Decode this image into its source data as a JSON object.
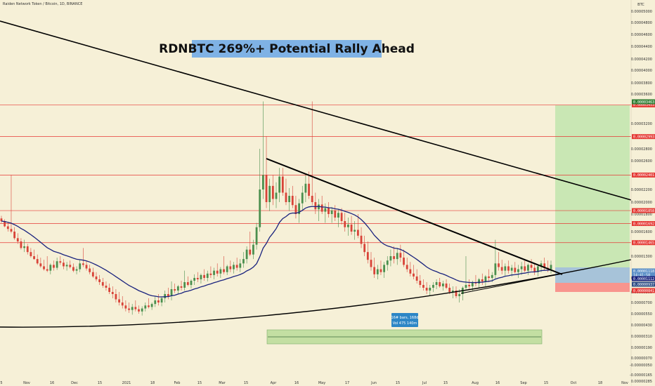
{
  "header": {
    "symbol": "Raiden Network Token / Bitcoin, 1D, BINANCE",
    "currency": "BTC"
  },
  "title": "RDNBTC 269%+ Potential Rally Ahead",
  "colors": {
    "background": "#f6f0d7",
    "resistance": "#e53935",
    "trendline": "#000000",
    "ema": "#1a237e",
    "up_candle": "#4a8f4e",
    "down_candle": "#d84338",
    "target_zone": "#c9e7b4",
    "stop_zone": "#f8958e",
    "entry_zone": "#a7c3d9",
    "info_box": "#2d86c6",
    "range_box": "#c3dfa2"
  },
  "chart_data": {
    "type": "candlestick",
    "title": "RDNBTC 269%+ Potential Rally Ahead",
    "x_ticks": [
      "5",
      "Nov",
      "16",
      "Dec",
      "15",
      "2021",
      "18",
      "Feb",
      "15",
      "Mar",
      "15",
      "Apr",
      "16",
      "May",
      "17",
      "Jun",
      "15",
      "Jul",
      "15",
      "Aug",
      "16",
      "Sep",
      "15",
      "Oct",
      "18",
      "Nov"
    ],
    "y_ticks": [
      {
        "label": "0.00005000",
        "value": 5e-05
      },
      {
        "label": "0.00004800",
        "value": 4.8e-05
      },
      {
        "label": "0.00004600",
        "value": 4.6e-05
      },
      {
        "label": "0.00004400",
        "value": 4.4e-05
      },
      {
        "label": "0.00004200",
        "value": 4.2e-05
      },
      {
        "label": "0.00004000",
        "value": 4e-05
      },
      {
        "label": "0.00003800",
        "value": 3.8e-05
      },
      {
        "label": "0.00003600",
        "value": 3.6e-05
      },
      {
        "label": "0.00003200",
        "value": 3.2e-05
      },
      {
        "label": "0.00002800",
        "value": 2.8e-05
      },
      {
        "label": "0.00002600",
        "value": 2.6e-05
      },
      {
        "label": "0.00002200",
        "value": 2.2e-05
      },
      {
        "label": "0.00002000",
        "value": 2e-05
      },
      {
        "label": "0.00001800",
        "value": 1.8e-05
      },
      {
        "label": "0.00001600",
        "value": 1.6e-05
      },
      {
        "label": "0.00001300",
        "value": 1.3e-05
      },
      {
        "label": "0.00001000",
        "value": 1e-05
      },
      {
        "label": "0.00000800",
        "value": 8e-06
      },
      {
        "label": "0.00000700",
        "value": 7e-06
      },
      {
        "label": "0.00000550",
        "value": 5.5e-06
      },
      {
        "label": "0.00000430",
        "value": 4.3e-06
      },
      {
        "label": "0.00000310",
        "value": 3.1e-06
      },
      {
        "label": "0.00000190",
        "value": 1.9e-06
      },
      {
        "label": "0.00000070",
        "value": 7e-07
      },
      {
        "label": "-0.00000050",
        "value": -5e-07
      },
      {
        "label": "-0.00000165",
        "value": -1.65e-06
      },
      {
        "label": "-0.00000285",
        "value": -2.85e-06
      }
    ],
    "resistance_levels": [
      {
        "label": "0.00003453",
        "value": 3.453e-05
      },
      {
        "label": "0.00002993",
        "value": 2.993e-05
      },
      {
        "label": "0.00002401",
        "value": 2.401e-05
      },
      {
        "label": "0.00001858",
        "value": 1.858e-05
      },
      {
        "label": "0.00001692",
        "value": 1.692e-05
      },
      {
        "label": "0.00001465",
        "value": 1.465e-05
      }
    ],
    "price_tags": [
      {
        "label": "0.00003463",
        "kind": "target",
        "value": 3.463e-05
      },
      {
        "label": "0.00001118",
        "kind": "current",
        "value": 1.118e-05,
        "sub": "14:41:58"
      },
      {
        "label": "0.00001112",
        "kind": "ema",
        "value": 1.112e-05
      },
      {
        "label": "0.00000937",
        "kind": "entry",
        "value": 9.37e-06
      },
      {
        "label": "0.00000841",
        "kind": "stop",
        "value": 8.41e-06
      }
    ],
    "candles": [
      [
        1.75e-05,
        1.78e-05,
        1.7e-05,
        1.72e-05
      ],
      [
        1.72e-05,
        1.74e-05,
        1.65e-05,
        1.66e-05
      ],
      [
        1.66e-05,
        1.7e-05,
        1.6e-05,
        1.63e-05
      ],
      [
        1.63e-05,
        2.4e-05,
        1.58e-05,
        1.6e-05
      ],
      [
        1.6e-05,
        1.65e-05,
        1.5e-05,
        1.52e-05
      ],
      [
        1.52e-05,
        1.58e-05,
        1.45e-05,
        1.48e-05
      ],
      [
        1.48e-05,
        1.52e-05,
        1.38e-05,
        1.4e-05
      ],
      [
        1.4e-05,
        1.5e-05,
        1.35e-05,
        1.42e-05
      ],
      [
        1.42e-05,
        1.45e-05,
        1.32e-05,
        1.35e-05
      ],
      [
        1.35e-05,
        1.4e-05,
        1.28e-05,
        1.3e-05
      ],
      [
        1.3e-05,
        1.38e-05,
        1.25e-05,
        1.26e-05
      ],
      [
        1.26e-05,
        1.32e-05,
        1.18e-05,
        1.2e-05
      ],
      [
        1.2e-05,
        1.28e-05,
        1.14e-05,
        1.16e-05
      ],
      [
        1.16e-05,
        1.25e-05,
        1.1e-05,
        1.12e-05
      ],
      [
        1.12e-05,
        1.3e-05,
        1.08e-05,
        1.1e-05
      ],
      [
        1.1e-05,
        1.2e-05,
        1.05e-05,
        1.18e-05
      ],
      [
        1.18e-05,
        1.24e-05,
        1.1e-05,
        1.14e-05
      ],
      [
        1.14e-05,
        1.28e-05,
        1.11e-05,
        1.23e-05
      ],
      [
        1.23e-05,
        1.3e-05,
        1.18e-05,
        1.21e-05
      ],
      [
        1.21e-05,
        1.26e-05,
        1.12e-05,
        1.16e-05
      ],
      [
        1.16e-05,
        1.22e-05,
        1.1e-05,
        1.18e-05
      ],
      [
        1.18e-05,
        1.24e-05,
        1.13e-05,
        1.15e-05
      ],
      [
        1.15e-05,
        1.2e-05,
        1.08e-05,
        1.1e-05
      ],
      [
        1.1e-05,
        1.16e-05,
        1.05e-05,
        1.12e-05
      ],
      [
        1.12e-05,
        1.25e-05,
        1.08e-05,
        1.2e-05
      ],
      [
        1.2e-05,
        1.4e-05,
        1.15e-05,
        1.18e-05
      ],
      [
        1.18e-05,
        1.24e-05,
        1.1e-05,
        1.13e-05
      ],
      [
        1.13e-05,
        1.18e-05,
        1.05e-05,
        1.08e-05
      ],
      [
        1.08e-05,
        1.14e-05,
        1e-05,
        1.02e-05
      ],
      [
        1.02e-05,
        1.08e-05,
        9.5e-06,
        9.8e-06
      ],
      [
        9.8e-06,
        1.04e-05,
        9e-06,
        9.4e-06
      ],
      [
        9.4e-06,
        1e-05,
        8.6e-06,
        8.9e-06
      ],
      [
        8.9e-06,
        9.5e-06,
        8.2e-06,
        8.6e-06
      ],
      [
        8.6e-06,
        9.2e-06,
        7.8e-06,
        8e-06
      ],
      [
        8e-06,
        8.8e-06,
        7.4e-06,
        7.8e-06
      ],
      [
        7.8e-06,
        8.4e-06,
        7e-06,
        7.3e-06
      ],
      [
        7.3e-06,
        8e-06,
        6.6e-06,
        7e-06
      ],
      [
        7e-06,
        7.6e-06,
        6.2e-06,
        6.6e-06
      ],
      [
        6.6e-06,
        7.2e-06,
        5.8e-06,
        6.2e-06
      ],
      [
        6.2e-06,
        7e-06,
        5.6e-06,
        6e-06
      ],
      [
        6e-06,
        6.8e-06,
        5.4e-06,
        6.4e-06
      ],
      [
        6.4e-06,
        7.2e-06,
        5.8e-06,
        6.1e-06
      ],
      [
        6.1e-06,
        6.6e-06,
        5.5e-06,
        5.8e-06
      ],
      [
        5.8e-06,
        6.5e-06,
        5.3e-06,
        6.2e-06
      ],
      [
        6.2e-06,
        7e-06,
        5.8e-06,
        6.6e-06
      ],
      [
        6.6e-06,
        7.4e-06,
        6.2e-06,
        6.4e-06
      ],
      [
        6.4e-06,
        7e-06,
        6e-06,
        6.8e-06
      ],
      [
        6.8e-06,
        7.6e-06,
        6.4e-06,
        7.2e-06
      ],
      [
        7.2e-06,
        7.8e-06,
        6.6e-06,
        7e-06
      ],
      [
        7e-06,
        7.6e-06,
        6.5e-06,
        7.4e-06
      ],
      [
        7.4e-06,
        8.2e-06,
        7e-06,
        7.8e-06
      ],
      [
        7.8e-06,
        8.6e-06,
        7.3e-06,
        7.6e-06
      ],
      [
        7.6e-06,
        9.5e-06,
        7.2e-06,
        8.4e-06
      ],
      [
        8.4e-06,
        9.2e-06,
        7.9e-06,
        8.2e-06
      ],
      [
        8.2e-06,
        9e-06,
        7.8e-06,
        8.8e-06
      ],
      [
        8.8e-06,
        9.6e-06,
        8.2e-06,
        8.6e-06
      ],
      [
        8.6e-06,
        1.1e-05,
        8.2e-06,
        9.4e-06
      ],
      [
        9.4e-06,
        1.02e-05,
        8.8e-06,
        9e-06
      ],
      [
        9e-06,
        9.8e-06,
        8.5e-06,
        9.6e-06
      ],
      [
        9.6e-06,
        1.05e-05,
        9e-06,
        1e-05
      ],
      [
        1e-05,
        1.08e-05,
        9.4e-06,
        9.8e-06
      ],
      [
        9.8e-06,
        1.06e-05,
        9.2e-06,
        1.04e-05
      ],
      [
        1.04e-05,
        1.12e-05,
        9.6e-06,
        1e-05
      ],
      [
        1e-05,
        1.1e-05,
        9.5e-06,
        1.06e-05
      ],
      [
        1.06e-05,
        1.16e-05,
        1e-05,
        1.04e-05
      ],
      [
        1.04e-05,
        1.14e-05,
        9.8e-06,
        1.1e-05
      ],
      [
        1.1e-05,
        1.2e-05,
        1.02e-05,
        1.06e-05
      ],
      [
        1.06e-05,
        1.15e-05,
        1e-05,
        1.12e-05
      ],
      [
        1.12e-05,
        1.3e-05,
        1.05e-05,
        1.08e-05
      ],
      [
        1.08e-05,
        1.18e-05,
        1.04e-05,
        1.16e-05
      ],
      [
        1.16e-05,
        1.24e-05,
        1.08e-05,
        1.12e-05
      ],
      [
        1.12e-05,
        1.22e-05,
        1.06e-05,
        1.18e-05
      ],
      [
        1.18e-05,
        1.28e-05,
        1.1e-05,
        1.14e-05
      ],
      [
        1.14e-05,
        1.26e-05,
        1.08e-05,
        1.2e-05
      ],
      [
        1.2e-05,
        1.35e-05,
        1.14e-05,
        1.26e-05
      ],
      [
        1.26e-05,
        1.42e-05,
        1.2e-05,
        1.38e-05
      ],
      [
        1.38e-05,
        1.6e-05,
        1.3e-05,
        1.32e-05
      ],
      [
        1.32e-05,
        1.5e-05,
        1.26e-05,
        1.44e-05
      ],
      [
        1.44e-05,
        1.7e-05,
        1.38e-05,
        1.65e-05
      ],
      [
        1.65e-05,
        2.8e-05,
        1.6e-05,
        2.2e-05
      ],
      [
        2.2e-05,
        3.5e-05,
        2.05e-05,
        2.4e-05
      ],
      [
        2.4e-05,
        3e-05,
        1.9e-05,
        2e-05
      ],
      [
        2e-05,
        2.35e-05,
        1.85e-05,
        2.25e-05
      ],
      [
        2.25e-05,
        2.4e-05,
        1.95e-05,
        2.05e-05
      ],
      [
        2.05e-05,
        2.3e-05,
        1.9e-05,
        2.15e-05
      ],
      [
        2.15e-05,
        2.5e-05,
        2e-05,
        2.38e-05
      ],
      [
        2.38e-05,
        2.5e-05,
        2.1e-05,
        2.15e-05
      ],
      [
        2.15e-05,
        2.35e-05,
        1.95e-05,
        2e-05
      ],
      [
        2e-05,
        2.22e-05,
        1.85e-05,
        2.1e-05
      ],
      [
        2.1e-05,
        2.25e-05,
        1.9e-05,
        1.95e-05
      ],
      [
        1.95e-05,
        2.1e-05,
        1.75e-05,
        1.8e-05
      ],
      [
        1.8e-05,
        2.05e-05,
        1.7e-05,
        1.98e-05
      ],
      [
        1.98e-05,
        2.25e-05,
        1.85e-05,
        2.15e-05
      ],
      [
        2.15e-05,
        2.4e-05,
        2e-05,
        2.28e-05
      ],
      [
        2.28e-05,
        2.45e-05,
        2.05e-05,
        2.1e-05
      ],
      [
        2.1e-05,
        3.5e-05,
        1.95e-05,
        2e-05
      ],
      [
        2e-05,
        2.15e-05,
        1.8e-05,
        1.88e-05
      ],
      [
        1.88e-05,
        2.05e-05,
        1.72e-05,
        1.96e-05
      ],
      [
        1.96e-05,
        2.1e-05,
        1.8e-05,
        1.84e-05
      ],
      [
        1.84e-05,
        1.98e-05,
        1.7e-05,
        1.9e-05
      ],
      [
        1.9e-05,
        2e-05,
        1.76e-05,
        1.8e-05
      ],
      [
        1.8e-05,
        1.92e-05,
        1.7e-05,
        1.86e-05
      ],
      [
        1.86e-05,
        1.95e-05,
        1.72e-05,
        1.76e-05
      ],
      [
        1.76e-05,
        1.88e-05,
        1.65e-05,
        1.82e-05
      ],
      [
        1.82e-05,
        1.9e-05,
        1.68e-05,
        1.72e-05
      ],
      [
        1.72e-05,
        1.82e-05,
        1.6e-05,
        1.65e-05
      ],
      [
        1.65e-05,
        1.76e-05,
        1.55e-05,
        1.68e-05
      ],
      [
        1.68e-05,
        1.78e-05,
        1.56e-05,
        1.6e-05
      ],
      [
        1.6e-05,
        1.72e-05,
        1.5e-05,
        1.62e-05
      ],
      [
        1.62e-05,
        1.8e-05,
        1.52e-05,
        1.55e-05
      ],
      [
        1.55e-05,
        1.65e-05,
        1.4e-05,
        1.45e-05
      ],
      [
        1.45e-05,
        1.55e-05,
        1.3e-05,
        1.35e-05
      ],
      [
        1.35e-05,
        1.48e-05,
        1.2e-05,
        1.25e-05
      ],
      [
        1.25e-05,
        1.35e-05,
        1.1e-05,
        1.15e-05
      ],
      [
        1.15e-05,
        1.28e-05,
        1e-05,
        1.05e-05
      ],
      [
        1.05e-05,
        1.18e-05,
        9.8e-06,
        1.12e-05
      ],
      [
        1.12e-05,
        1.24e-05,
        1.04e-05,
        1.08e-05
      ],
      [
        1.08e-05,
        1.22e-05,
        1e-05,
        1.18e-05
      ],
      [
        1.18e-05,
        1.3e-05,
        1.1e-05,
        1.24e-05
      ],
      [
        1.24e-05,
        1.38e-05,
        1.16e-05,
        1.3e-05
      ],
      [
        1.3e-05,
        1.42e-05,
        1.2e-05,
        1.26e-05
      ],
      [
        1.26e-05,
        1.4e-05,
        1.18e-05,
        1.34e-05
      ],
      [
        1.34e-05,
        1.44e-05,
        1.22e-05,
        1.28e-05
      ],
      [
        1.28e-05,
        1.38e-05,
        1.15e-05,
        1.18e-05
      ],
      [
        1.18e-05,
        1.28e-05,
        1.08e-05,
        1.12e-05
      ],
      [
        1.12e-05,
        1.22e-05,
        1.02e-05,
        1.06e-05
      ],
      [
        1.06e-05,
        1.18e-05,
        9.8e-06,
        1.02e-05
      ],
      [
        1.02e-05,
        1.12e-05,
        9.2e-06,
        9.6e-06
      ],
      [
        9.6e-06,
        1.04e-05,
        8.6e-06,
        9e-06
      ],
      [
        9e-06,
        9.8e-06,
        8.2e-06,
        8.6e-06
      ],
      [
        8.6e-06,
        9.4e-06,
        7.8e-06,
        8.2e-06
      ],
      [
        8.2e-06,
        9e-06,
        7.6e-06,
        8.6e-06
      ],
      [
        8.6e-06,
        9.4e-06,
        8e-06,
        9e-06
      ],
      [
        9e-06,
        9.8e-06,
        8.4e-06,
        9.4e-06
      ],
      [
        9.4e-06,
        1e-05,
        8.6e-06,
        8.8e-06
      ],
      [
        8.8e-06,
        9.6e-06,
        8.2e-06,
        9.2e-06
      ],
      [
        9.2e-06,
        9.8e-06,
        8.4e-06,
        8.6e-06
      ],
      [
        8.6e-06,
        9.2e-06,
        7.8e-06,
        8e-06
      ],
      [
        8e-06,
        8.8e-06,
        7.4e-06,
        8.2e-06
      ],
      [
        8.2e-06,
        8.8e-06,
        7.4e-06,
        7.6e-06
      ],
      [
        7.6e-06,
        8.4e-06,
        7e-06,
        7.8e-06
      ],
      [
        7.8e-06,
        8.8e-06,
        7.2e-06,
        8.6e-06
      ],
      [
        8.6e-06,
        1.3e-05,
        8.2e-06,
        9e-06
      ],
      [
        9e-06,
        9.8e-06,
        8.4e-06,
        8.8e-06
      ],
      [
        8.8e-06,
        9.6e-06,
        8.2e-06,
        9.4e-06
      ],
      [
        9.4e-06,
        1.04e-05,
        8.8e-06,
        9.2e-06
      ],
      [
        9.2e-06,
        1e-05,
        8.6e-06,
        9.8e-06
      ],
      [
        9.8e-06,
        1.06e-05,
        9e-06,
        9.5e-06
      ],
      [
        9.5e-06,
        1.04e-05,
        8.8e-06,
        1.02e-05
      ],
      [
        1.02e-05,
        1.12e-05,
        9.4e-06,
        1e-05
      ],
      [
        1e-05,
        1.08e-05,
        9.4e-06,
        1.04e-05
      ],
      [
        1.04e-05,
        1.5e-05,
        9.8e-06,
        1.2e-05
      ],
      [
        1.2e-05,
        1.35e-05,
        1.1e-05,
        1.15e-05
      ],
      [
        1.15e-05,
        1.25e-05,
        1.05e-05,
        1.1e-05
      ],
      [
        1.1e-05,
        1.2e-05,
        1.02e-05,
        1.16e-05
      ],
      [
        1.16e-05,
        1.24e-05,
        1.06e-05,
        1.1e-05
      ],
      [
        1.1e-05,
        1.18e-05,
        1.02e-05,
        1.14e-05
      ],
      [
        1.14e-05,
        1.22e-05,
        1.06e-05,
        1.08e-05
      ],
      [
        1.08e-05,
        1.18e-05,
        1e-05,
        1.12e-05
      ],
      [
        1.12e-05,
        1.22e-05,
        1.04e-05,
        1.16e-05
      ],
      [
        1.16e-05,
        1.24e-05,
        1.08e-05,
        1.1e-05
      ],
      [
        1.1e-05,
        1.2e-05,
        1.04e-05,
        1.18e-05
      ],
      [
        1.18e-05,
        1.26e-05,
        1.1e-05,
        1.14e-05
      ],
      [
        1.14e-05,
        1.2e-05,
        1.04e-05,
        1.08e-05
      ],
      [
        1.08e-05,
        1.18e-05,
        1.02e-05,
        1.16e-05
      ],
      [
        1.16e-05,
        1.24e-05,
        1.08e-05,
        1.2e-05
      ],
      [
        1.2e-05,
        1.28e-05,
        1.1e-05,
        1.14e-05
      ],
      [
        1.14e-05,
        1.24e-05,
        1.08e-05,
        1.12e-05
      ],
      [
        1.12e-05,
        1.24e-05,
        1.06e-05,
        1.18e-05
      ]
    ],
    "annotations": {
      "info_box": [
        "16# bars, 168d",
        "Vol 475 140m"
      ]
    }
  }
}
